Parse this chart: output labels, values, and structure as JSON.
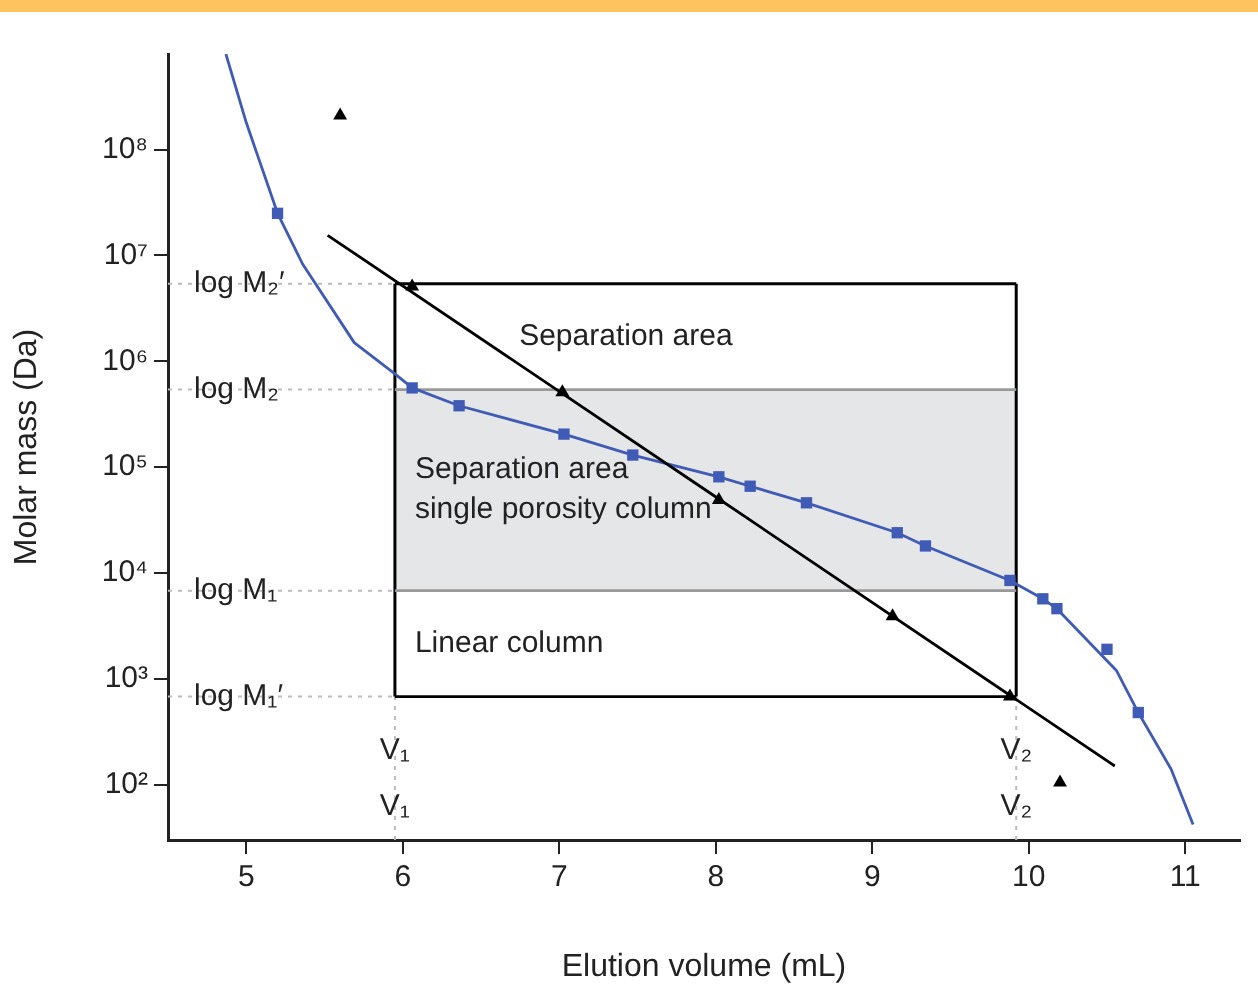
{
  "chart_data": {
    "type": "line",
    "xlabel": "Elution volume (mL)",
    "ylabel": "Molar mass (Da)",
    "log": "y",
    "grid": false,
    "legend": false,
    "xlim": [
      4.5,
      11.35
    ],
    "xticks": [
      5,
      6,
      7,
      8,
      9,
      10,
      11
    ],
    "ylim": [
      30,
      800000000
    ],
    "yticks": [
      {
        "value": 100,
        "label": "10²"
      },
      {
        "value": 1000,
        "label": "10³"
      },
      {
        "value": 10000,
        "label": "10⁴"
      },
      {
        "value": 100000,
        "label": "10⁵"
      },
      {
        "value": 1000000,
        "label": "10⁶"
      },
      {
        "value": 10000000,
        "label": "10⁷"
      },
      {
        "value": 100000000,
        "label": "10⁸"
      }
    ],
    "series": [
      {
        "color": "#000000",
        "marker": "none",
        "x": [
          5.95,
          9.92
        ],
        "values": [
          5400000,
          5400000
        ]
      },
      {
        "color": "#000000",
        "marker": "none",
        "x": [
          5.95,
          9.92
        ],
        "values": [
          680,
          680
        ]
      },
      {
        "color": "#999999",
        "marker": "none",
        "x": [
          5.95,
          9.92
        ],
        "values": [
          540000,
          540000
        ]
      },
      {
        "color": "#999999",
        "marker": "none",
        "x": [
          5.95,
          9.92
        ],
        "values": [
          6800,
          6800
        ]
      },
      {
        "color": "#3f5bb5",
        "marker": "none",
        "x": [
          4.87,
          5.0,
          5.2,
          5.36,
          5.69,
          5.95,
          6.06,
          6.36,
          7.03,
          7.47,
          8.02,
          8.22,
          8.58,
          9.16,
          9.34,
          9.88,
          10.09,
          10.18,
          10.56,
          10.7,
          10.91,
          11.05
        ],
        "values": [
          800000000,
          180000000,
          25000000,
          8300000,
          1500000,
          760000,
          560000,
          380000,
          205000,
          130000,
          81000,
          66000,
          46000,
          24000,
          18000,
          8500,
          5700,
          4600,
          1200,
          480,
          140,
          42
        ]
      },
      {
        "type": "scatter",
        "color": "#3f5bb5",
        "marker": "square",
        "x": [
          5.2,
          6.06,
          6.36,
          7.03,
          7.47,
          8.02,
          8.22,
          8.58,
          9.16,
          9.34,
          9.88,
          10.09,
          10.18,
          10.5,
          10.7
        ],
        "values": [
          25000000,
          560000,
          380000,
          205000,
          130000,
          81000,
          66000,
          46000,
          24000,
          18000,
          8500,
          5700,
          4600,
          1900,
          480
        ]
      },
      {
        "color": "#000000",
        "marker": "none",
        "x": [
          5.52,
          8.02,
          10.55
        ],
        "values": [
          15500000,
          50000,
          150
        ]
      },
      {
        "type": "scatter",
        "color": "#000000",
        "marker": "triangle",
        "x": [
          5.6,
          6.06,
          7.02,
          8.02,
          9.13,
          9.88,
          10.2
        ],
        "values": [
          210000000,
          5100000,
          510000,
          49000,
          3900,
          680,
          105
        ]
      }
    ],
    "bands": [
      {
        "axis": "y",
        "from": 6800,
        "to": 540000,
        "label": "Separation area\nsingle porosity column",
        "color": "#e5e6e8"
      }
    ],
    "ref_lines": [
      {
        "axis": "y",
        "value": 5400000,
        "label": "log M₂′",
        "color": "#bbbbbb",
        "line_style": "dotted"
      },
      {
        "axis": "y",
        "value": 540000,
        "label": "log M₂",
        "color": "#bbbbbb",
        "line_style": "dotted"
      },
      {
        "axis": "y",
        "value": 6800,
        "label": "log M₁",
        "color": "#bbbbbb",
        "line_style": "dotted"
      },
      {
        "axis": "y",
        "value": 680,
        "label": "log M₁′",
        "color": "#bbbbbb",
        "line_style": "dotted"
      },
      {
        "axis": "x",
        "value": 5.95,
        "label": "V₁",
        "color": "#bbbbbb",
        "line_style": "dotted"
      },
      {
        "axis": "x",
        "value": 9.92,
        "label": "V₂",
        "color": "#bbbbbb",
        "line_style": "dotted"
      }
    ],
    "annotations": [
      "Separation area",
      "Linear column",
      {
        "text": "V₁",
        "x": 5.95,
        "y": 62
      },
      {
        "text": "V₂",
        "x": 9.92,
        "y": 62
      }
    ]
  }
}
